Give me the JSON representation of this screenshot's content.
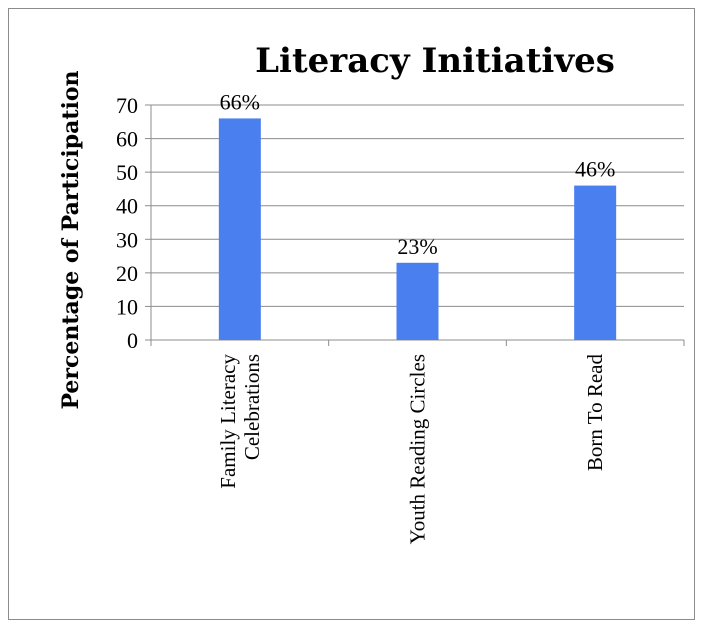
{
  "chart_data": {
    "type": "bar",
    "title": "Literacy Initiatives",
    "xlabel": "",
    "ylabel": "Percentage of Participation",
    "categories": [
      [
        "Family Literacy",
        "Celebrations"
      ],
      [
        "Youth Reading Circles"
      ],
      [
        "Born To Read"
      ]
    ],
    "values": [
      66,
      23,
      46
    ],
    "data_labels": [
      "66%",
      "23%",
      "46%"
    ],
    "yticks": [
      0,
      10,
      20,
      30,
      40,
      50,
      60,
      70
    ],
    "ylim": [
      0,
      70
    ],
    "grid": true,
    "legend": "none",
    "bar_color": "#4a7ff0",
    "grid_color": "#8c8c8c"
  }
}
